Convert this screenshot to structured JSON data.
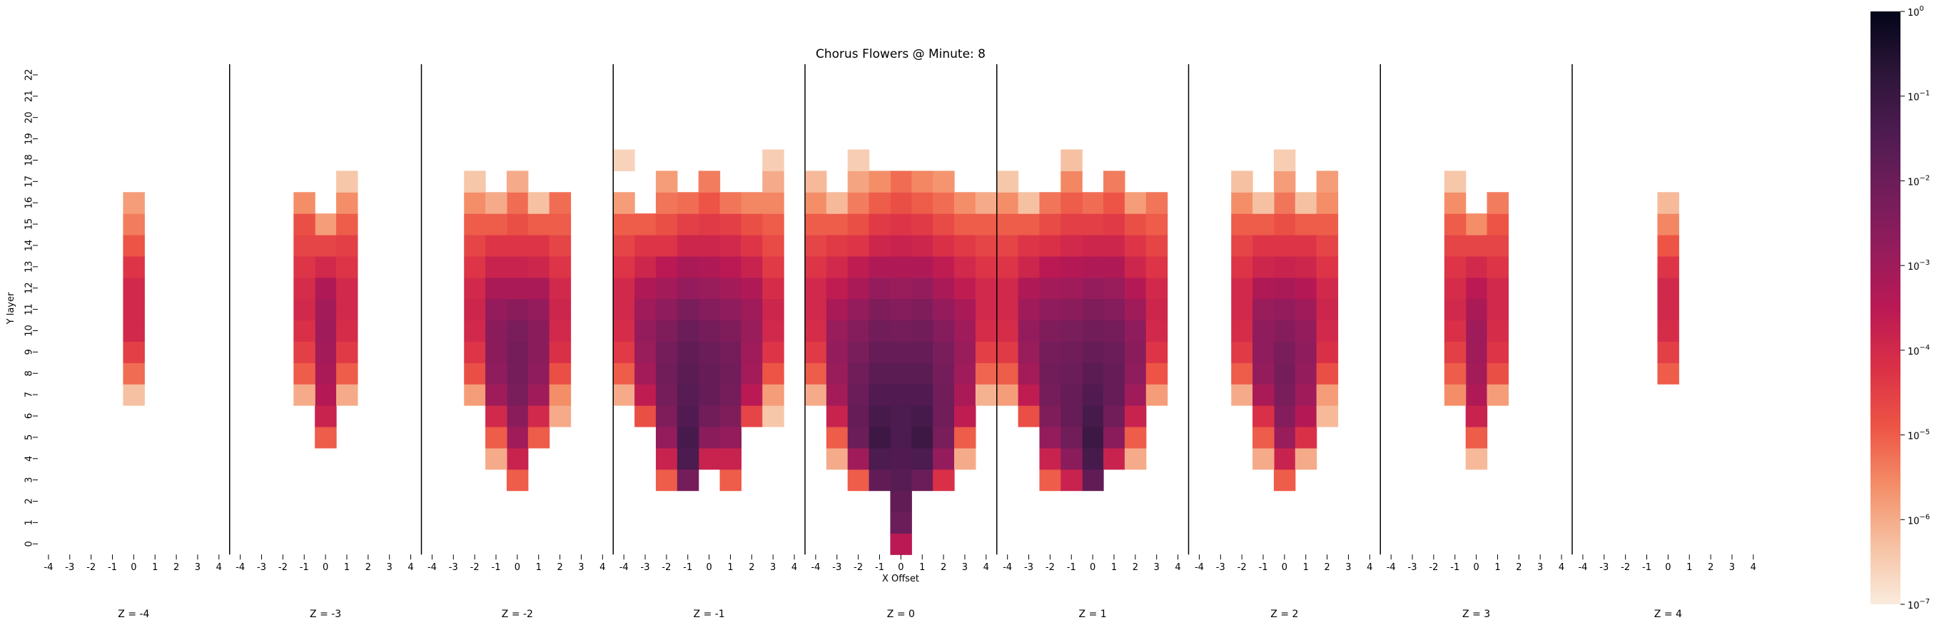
{
  "chart_data": {
    "type": "heatmap",
    "title": "Chorus Flowers @ Minute: 8",
    "xlabel": "X Offset",
    "ylabel": "Y layer",
    "x_ticks": [
      "-4",
      "-3",
      "-2",
      "-1",
      "0",
      "1",
      "2",
      "3",
      "4"
    ],
    "y_ticks": [
      "0",
      "1",
      "2",
      "3",
      "4",
      "5",
      "6",
      "7",
      "8",
      "9",
      "10",
      "11",
      "12",
      "13",
      "14",
      "15",
      "16",
      "17",
      "18",
      "19",
      "20",
      "21",
      "22"
    ],
    "panels": [
      "Z = -4",
      "Z = -3",
      "Z = -2",
      "Z = -1",
      "Z = 0",
      "Z = 1",
      "Z = 2",
      "Z = 3",
      "Z = 4"
    ],
    "colorbar": {
      "scale": "log",
      "range": [
        1e-07,
        1
      ],
      "colormap": "rocket_r",
      "tick_bases": [
        "10",
        "10",
        "10",
        "10",
        "10",
        "10",
        "10",
        "10"
      ],
      "tick_exponents": [
        "0",
        "−1",
        "−2",
        "−3",
        "−4",
        "−5",
        "−6",
        "−7"
      ]
    },
    "values_log10": {
      "-4": {
        "0": {
          "7": -6.3,
          "8": -5.2,
          "9": -4.5,
          "10": -4.0,
          "11": -4.0,
          "12": -4.0,
          "13": -4.3,
          "14": -4.9,
          "15": -5.4,
          "16": -5.8
        }
      },
      "-3": {
        "-1": {
          "7": -6.0,
          "8": -5.0,
          "9": -4.5,
          "10": -4.2,
          "11": -4.0,
          "12": -4.1,
          "13": -4.3,
          "14": -4.6,
          "15": -4.8,
          "16": -5.6
        },
        "0": {
          "5": -5.0,
          "6": -3.8,
          "7": -3.4,
          "8": -3.2,
          "9": -3.1,
          "10": -3.0,
          "11": -3.1,
          "12": -3.3,
          "13": -4.0,
          "14": -4.6,
          "15": -5.8
        },
        "1": {
          "7": -6.0,
          "8": -5.0,
          "9": -4.4,
          "10": -4.1,
          "11": -4.0,
          "12": -4.0,
          "13": -4.3,
          "14": -4.5,
          "15": -5.0,
          "16": -5.6,
          "17": -6.4
        }
      },
      "-2": {
        "-2": {
          "7": -5.8,
          "8": -4.8,
          "9": -4.3,
          "10": -4.0,
          "11": -3.9,
          "12": -4.0,
          "13": -4.3,
          "14": -4.6,
          "15": -5.0,
          "16": -5.6,
          "17": -6.4
        },
        "-1": {
          "4": -6.0,
          "5": -5.0,
          "6": -4.0,
          "7": -3.0,
          "8": -2.7,
          "9": -2.6,
          "10": -2.6,
          "11": -2.8,
          "12": -3.2,
          "13": -3.8,
          "14": -4.3,
          "15": -5.0,
          "16": -6.0
        },
        "0": {
          "3": -5.0,
          "4": -3.8,
          "5": -3.0,
          "6": -2.6,
          "7": -2.3,
          "8": -2.2,
          "9": -2.2,
          "10": -2.3,
          "11": -2.6,
          "12": -3.2,
          "13": -3.8,
          "14": -4.3,
          "15": -4.8,
          "16": -5.2,
          "17": -6.0
        },
        "1": {
          "5": -5.0,
          "6": -4.0,
          "7": -3.0,
          "8": -2.7,
          "9": -2.6,
          "10": -2.6,
          "11": -2.8,
          "12": -3.2,
          "13": -3.9,
          "14": -4.3,
          "15": -5.0,
          "16": -6.3
        },
        "2": {
          "6": -6.0,
          "7": -5.6,
          "8": -4.8,
          "9": -4.2,
          "10": -4.0,
          "11": -3.9,
          "12": -4.0,
          "13": -4.3,
          "14": -4.6,
          "15": -5.0,
          "16": -5.2
        }
      },
      "-1": {
        "-4": {
          "7": -6.0,
          "8": -5.0,
          "9": -4.4,
          "10": -4.1,
          "11": -4.0,
          "12": -4.0,
          "13": -4.3,
          "14": -4.6,
          "15": -5.0,
          "16": -5.8,
          "18": -6.6
        },
        "-3": {
          "6": -4.8,
          "7": -3.6,
          "8": -3.1,
          "9": -2.9,
          "10": -2.8,
          "11": -3.0,
          "12": -3.3,
          "13": -3.9,
          "14": -4.3,
          "15": -5.0
        },
        "-2": {
          "3": -5.0,
          "4": -3.8,
          "5": -2.8,
          "6": -2.4,
          "7": -2.2,
          "8": -2.1,
          "9": -2.2,
          "10": -2.4,
          "11": -2.7,
          "12": -3.1,
          "13": -3.5,
          "14": -4.3,
          "15": -4.8,
          "16": -5.3,
          "17": -5.8
        },
        "-1": {
          "3": -2.2,
          "4": -1.4,
          "5": -1.3,
          "6": -1.5,
          "7": -1.6,
          "8": -1.7,
          "9": -1.8,
          "10": -2.0,
          "11": -2.3,
          "12": -2.8,
          "13": -3.2,
          "14": -3.9,
          "15": -4.5,
          "16": -5.2
        },
        "0": {
          "4": -3.8,
          "5": -2.6,
          "6": -2.1,
          "7": -1.9,
          "8": -1.9,
          "9": -2.0,
          "10": -2.2,
          "11": -2.5,
          "12": -2.9,
          "13": -3.3,
          "14": -3.9,
          "15": -4.4,
          "16": -4.9,
          "17": -5.4
        },
        "1": {
          "3": -5.0,
          "4": -3.8,
          "5": -2.8,
          "6": -2.4,
          "7": -2.2,
          "8": -2.1,
          "9": -2.2,
          "10": -2.4,
          "11": -2.7,
          "12": -3.1,
          "13": -3.5,
          "14": -4.0,
          "15": -4.5,
          "16": -5.3
        },
        "2": {
          "6": -4.6,
          "7": -3.5,
          "8": -3.1,
          "9": -3.0,
          "10": -2.9,
          "11": -3.0,
          "12": -3.3,
          "13": -3.8,
          "14": -4.3,
          "15": -4.8,
          "16": -5.5
        },
        "3": {
          "6": -6.4,
          "7": -5.8,
          "8": -4.9,
          "9": -4.3,
          "10": -4.0,
          "11": -3.9,
          "12": -4.1,
          "13": -4.4,
          "14": -4.7,
          "15": -5.0,
          "16": -5.5,
          "17": -6.0,
          "18": -6.5
        }
      },
      "0": {
        "-4": {
          "7": -6.0,
          "8": -5.0,
          "9": -4.4,
          "10": -4.1,
          "11": -4.0,
          "12": -4.0,
          "13": -4.3,
          "14": -4.6,
          "15": -5.0,
          "16": -5.6,
          "17": -6.2
        },
        "-3": {
          "4": -6.0,
          "5": -5.0,
          "6": -3.8,
          "7": -3.1,
          "8": -2.9,
          "9": -2.8,
          "10": -2.9,
          "11": -3.2,
          "12": -3.6,
          "13": -4.0,
          "14": -4.4,
          "15": -5.0,
          "16": -6.2
        },
        "-2": {
          "3": -5.0,
          "4": -3.0,
          "5": -2.0,
          "6": -1.9,
          "7": -2.0,
          "8": -2.1,
          "9": -2.3,
          "10": -2.5,
          "11": -2.8,
          "12": -3.2,
          "13": -3.6,
          "14": -4.3,
          "15": -4.8,
          "16": -5.4,
          "17": -5.9,
          "18": -6.5
        },
        "-1": {
          "3": -1.8,
          "4": -1.4,
          "5": -1.1,
          "6": -1.3,
          "7": -1.5,
          "8": -1.7,
          "9": -1.9,
          "10": -2.1,
          "11": -2.4,
          "12": -2.8,
          "13": -3.3,
          "14": -3.9,
          "15": -4.4,
          "16": -5.0,
          "17": -5.6
        },
        "0": {
          "0": -3.5,
          "1": -2.0,
          "2": -1.8,
          "3": -1.6,
          "4": -1.5,
          "5": -1.4,
          "6": -1.4,
          "7": -1.5,
          "8": -1.7,
          "9": -1.9,
          "10": -2.2,
          "11": -2.5,
          "12": -2.9,
          "13": -3.3,
          "14": -3.8,
          "15": -4.3,
          "16": -4.8,
          "17": -5.2
        },
        "1": {
          "3": -2.0,
          "4": -1.4,
          "5": -1.1,
          "6": -1.3,
          "7": -1.5,
          "8": -1.7,
          "9": -1.9,
          "10": -2.1,
          "11": -2.4,
          "12": -2.8,
          "13": -3.3,
          "14": -3.9,
          "15": -4.4,
          "16": -5.0,
          "17": -5.5
        },
        "2": {
          "3": -4.2,
          "4": -2.8,
          "5": -2.3,
          "6": -2.1,
          "7": -2.1,
          "8": -2.2,
          "9": -2.3,
          "10": -2.5,
          "11": -2.8,
          "12": -3.2,
          "13": -3.6,
          "14": -4.2,
          "15": -4.7,
          "16": -5.2,
          "17": -5.7
        },
        "3": {
          "4": -6.0,
          "5": -5.0,
          "6": -3.6,
          "7": -3.2,
          "8": -3.0,
          "9": -2.9,
          "10": -3.0,
          "11": -3.2,
          "12": -3.6,
          "13": -4.0,
          "14": -4.4,
          "15": -5.0,
          "16": -5.6
        },
        "4": {
          "7": -6.1,
          "8": -5.1,
          "9": -4.5,
          "10": -4.1,
          "11": -4.0,
          "12": -4.0,
          "13": -4.3,
          "14": -4.6,
          "15": -5.0,
          "16": -6.0
        }
      },
      "1": {
        "-4": {
          "7": -5.8,
          "8": -5.0,
          "9": -4.4,
          "10": -4.1,
          "11": -4.0,
          "12": -4.0,
          "13": -4.3,
          "14": -4.6,
          "15": -5.0,
          "16": -5.6,
          "17": -6.4
        },
        "-3": {
          "6": -4.8,
          "7": -3.6,
          "8": -3.1,
          "9": -2.9,
          "10": -2.8,
          "11": -3.0,
          "12": -3.3,
          "13": -3.9,
          "14": -4.3,
          "15": -5.0,
          "16": -6.3
        },
        "-2": {
          "3": -5.0,
          "4": -3.8,
          "5": -2.8,
          "6": -2.4,
          "7": -2.2,
          "8": -2.1,
          "9": -2.2,
          "10": -2.4,
          "11": -2.7,
          "12": -3.1,
          "13": -3.5,
          "14": -4.2,
          "15": -4.7,
          "16": -5.3
        },
        "-1": {
          "3": -3.8,
          "4": -2.6,
          "5": -2.1,
          "6": -1.9,
          "7": -1.9,
          "8": -2.0,
          "9": -2.1,
          "10": -2.3,
          "11": -2.6,
          "12": -3.0,
          "13": -3.4,
          "14": -4.0,
          "15": -4.5,
          "16": -5.0,
          "17": -5.5,
          "18": -6.3
        },
        "0": {
          "3": -1.8,
          "4": -1.3,
          "5": -1.1,
          "6": -1.3,
          "7": -1.5,
          "8": -1.7,
          "9": -1.9,
          "10": -2.1,
          "11": -2.4,
          "12": -2.8,
          "13": -3.3,
          "14": -3.9,
          "15": -4.5,
          "16": -5.2
        },
        "1": {
          "4": -3.8,
          "5": -2.6,
          "6": -2.1,
          "7": -1.9,
          "8": -1.9,
          "9": -2.0,
          "10": -2.2,
          "11": -2.5,
          "12": -2.9,
          "13": -3.3,
          "14": -3.9,
          "15": -4.4,
          "16": -4.9,
          "17": -5.4
        },
        "2": {
          "4": -6.0,
          "5": -5.0,
          "6": -3.8,
          "7": -3.0,
          "8": -2.7,
          "9": -2.6,
          "10": -2.7,
          "11": -3.0,
          "12": -3.4,
          "13": -3.9,
          "14": -4.3,
          "15": -4.8,
          "16": -5.8
        },
        "3": {
          "7": -5.8,
          "8": -4.9,
          "9": -4.3,
          "10": -4.0,
          "11": -3.9,
          "12": -4.0,
          "13": -4.3,
          "14": -4.6,
          "15": -5.0,
          "16": -5.3
        }
      },
      "2": {
        "-2": {
          "7": -6.0,
          "8": -5.0,
          "9": -4.4,
          "10": -4.1,
          "11": -4.0,
          "12": -4.0,
          "13": -4.3,
          "14": -4.6,
          "15": -5.0,
          "16": -5.6,
          "17": -6.3
        },
        "-1": {
          "4": -6.0,
          "5": -5.0,
          "6": -4.2,
          "7": -3.2,
          "8": -2.8,
          "9": -2.7,
          "10": -2.7,
          "11": -2.9,
          "12": -3.3,
          "13": -3.9,
          "14": -4.3,
          "15": -5.0,
          "16": -6.3
        },
        "0": {
          "3": -5.0,
          "4": -3.8,
          "5": -2.9,
          "6": -2.5,
          "7": -2.3,
          "8": -2.2,
          "9": -2.3,
          "10": -2.5,
          "11": -2.8,
          "12": -3.2,
          "13": -3.8,
          "14": -4.3,
          "15": -4.8,
          "16": -5.3,
          "17": -5.8,
          "18": -6.5
        },
        "1": {
          "4": -6.0,
          "5": -4.2,
          "6": -3.4,
          "7": -3.0,
          "8": -2.8,
          "9": -2.7,
          "10": -2.8,
          "11": -3.0,
          "12": -3.4,
          "13": -3.9,
          "14": -4.3,
          "15": -5.0,
          "16": -6.3
        },
        "2": {
          "6": -6.2,
          "7": -5.8,
          "8": -4.8,
          "9": -4.2,
          "10": -4.0,
          "11": -3.9,
          "12": -4.0,
          "13": -4.3,
          "14": -4.6,
          "15": -5.0,
          "16": -5.6,
          "17": -5.8
        }
      },
      "3": {
        "-1": {
          "7": -5.6,
          "8": -5.0,
          "9": -4.5,
          "10": -4.2,
          "11": -4.0,
          "12": -4.1,
          "13": -4.3,
          "14": -4.6,
          "15": -5.0,
          "16": -5.6,
          "17": -6.4
        },
        "0": {
          "4": -6.2,
          "5": -5.0,
          "6": -3.8,
          "7": -3.3,
          "8": -3.1,
          "9": -3.0,
          "10": -3.0,
          "11": -3.2,
          "12": -3.5,
          "13": -4.0,
          "14": -4.6,
          "15": -5.6
        },
        "1": {
          "7": -5.8,
          "8": -4.8,
          "9": -4.3,
          "10": -4.1,
          "11": -4.0,
          "12": -4.0,
          "13": -4.3,
          "14": -4.6,
          "15": -4.9,
          "16": -5.4
        }
      },
      "4": {
        "0": {
          "8": -5.0,
          "9": -4.5,
          "10": -4.1,
          "11": -4.0,
          "12": -4.0,
          "13": -4.3,
          "14": -4.9,
          "15": -5.5,
          "16": -6.2
        }
      }
    }
  }
}
